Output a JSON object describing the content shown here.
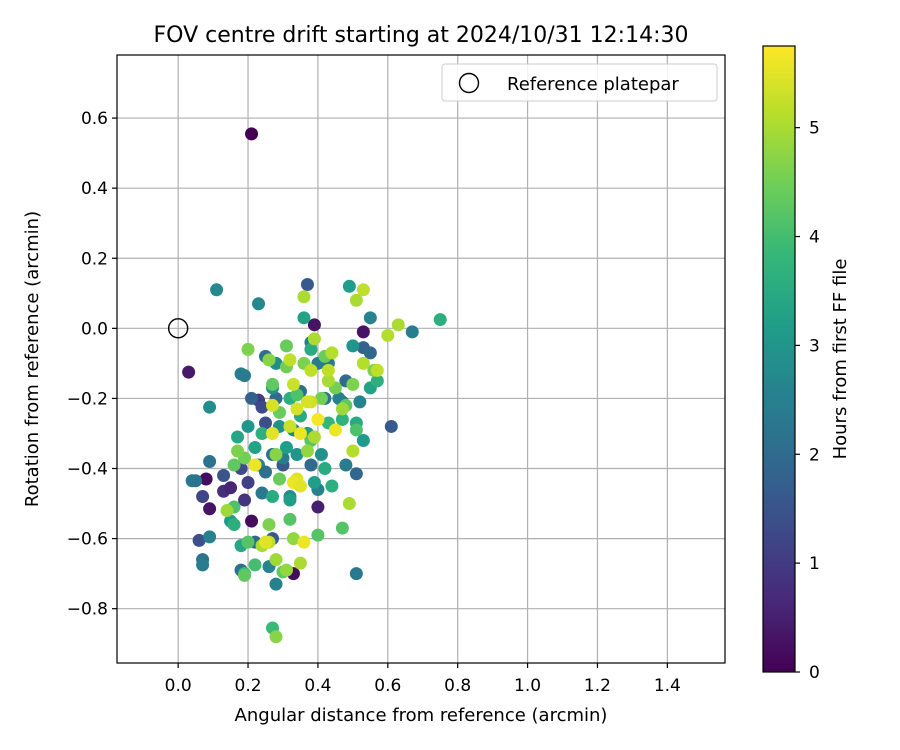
{
  "chart_data": {
    "type": "scatter",
    "title": "FOV centre drift starting at 2024/10/31 12:14:30",
    "xlabel": "Angular distance from reference (arcmin)",
    "ylabel": "Rotation from reference (arcmin)",
    "xlim": [
      -0.175,
      1.565
    ],
    "ylim": [
      -0.955,
      0.78
    ],
    "x_ticks": [
      0.0,
      0.2,
      0.4,
      0.6,
      0.8,
      1.0,
      1.2,
      1.4
    ],
    "x_tick_labels": [
      "0.0",
      "0.2",
      "0.4",
      "0.6",
      "0.8",
      "1.0",
      "1.2",
      "1.4"
    ],
    "y_ticks": [
      0.6,
      0.4,
      0.2,
      0.0,
      -0.2,
      -0.4,
      -0.6,
      -0.8
    ],
    "y_tick_labels": [
      "0.6",
      "0.4",
      "0.2",
      "0.0",
      "−0.2",
      "−0.4",
      "−0.6",
      "−0.8"
    ],
    "grid": true,
    "legend": {
      "position": "top-right",
      "entries": [
        {
          "label": "Reference platepar",
          "marker": "open-circle"
        }
      ]
    },
    "reference": {
      "x": 0.0,
      "y": 0.0
    },
    "colorbar": {
      "label": "Hours from first FF file",
      "range": [
        0,
        5.75
      ],
      "ticks": [
        0,
        1,
        2,
        3,
        4,
        5
      ],
      "tick_labels": [
        "0",
        "1",
        "2",
        "3",
        "4",
        "5"
      ],
      "colormap": [
        "#440154",
        "#482878",
        "#3e4989",
        "#31688e",
        "#26828e",
        "#1f9e89",
        "#35b779",
        "#6ece58",
        "#b5de2b",
        "#fde725"
      ]
    },
    "series": [
      {
        "points": [
          [
            0.21,
            0.555,
            0.0
          ],
          [
            0.03,
            -0.125,
            0.4
          ],
          [
            0.39,
            0.01,
            0.3
          ],
          [
            0.53,
            -0.01,
            0.3
          ],
          [
            0.08,
            -0.43,
            0.2
          ],
          [
            0.09,
            -0.515,
            0.3
          ],
          [
            0.21,
            -0.55,
            0.2
          ],
          [
            0.33,
            -0.7,
            0.2
          ],
          [
            0.4,
            -0.51,
            0.5
          ],
          [
            0.13,
            -0.465,
            0.8
          ],
          [
            0.07,
            -0.48,
            1.2
          ],
          [
            0.15,
            -0.455,
            0.6
          ],
          [
            0.19,
            -0.49,
            0.9
          ],
          [
            0.23,
            -0.205,
            1.0
          ],
          [
            0.06,
            -0.605,
            1.4
          ],
          [
            0.27,
            -0.6,
            1.6
          ],
          [
            0.37,
            0.125,
            1.6
          ],
          [
            0.53,
            -0.055,
            1.8
          ],
          [
            0.61,
            -0.28,
            1.6
          ],
          [
            0.51,
            -0.415,
            1.9
          ],
          [
            0.24,
            -0.225,
            1.3
          ],
          [
            0.2,
            -0.44,
            1.1
          ],
          [
            0.22,
            -0.61,
            1.9
          ],
          [
            0.13,
            -0.42,
            1.5
          ],
          [
            0.18,
            -0.4,
            1.3
          ],
          [
            0.3,
            -0.39,
            1.6
          ],
          [
            0.25,
            -0.27,
            1.4
          ],
          [
            0.55,
            -0.07,
            1.9
          ],
          [
            0.67,
            -0.01,
            2.4
          ],
          [
            0.25,
            -0.08,
            2.1
          ],
          [
            0.21,
            -0.2,
            1.8
          ],
          [
            0.28,
            -0.2,
            2.0
          ],
          [
            0.38,
            -0.04,
            2.4
          ],
          [
            0.4,
            -0.1,
            2.4
          ],
          [
            0.43,
            -0.1,
            2.3
          ],
          [
            0.48,
            -0.15,
            2.0
          ],
          [
            0.52,
            -0.21,
            2.6
          ],
          [
            0.42,
            -0.2,
            2.2
          ],
          [
            0.47,
            -0.21,
            2.3
          ],
          [
            0.35,
            -0.18,
            2.1
          ],
          [
            0.33,
            -0.29,
            2.5
          ],
          [
            0.27,
            -0.36,
            2.2
          ],
          [
            0.3,
            -0.37,
            2.4
          ],
          [
            0.38,
            -0.39,
            2.0
          ],
          [
            0.24,
            -0.47,
            2.3
          ],
          [
            0.23,
            -0.39,
            2.5
          ],
          [
            0.25,
            -0.41,
            2.1
          ],
          [
            0.4,
            -0.46,
            2.5
          ],
          [
            0.46,
            -0.2,
            2.5
          ],
          [
            0.55,
            0.03,
            2.6
          ],
          [
            0.48,
            -0.39,
            2.4
          ],
          [
            0.51,
            -0.7,
            2.3
          ],
          [
            0.28,
            -0.73,
            2.5
          ],
          [
            0.18,
            -0.69,
            2.1
          ],
          [
            0.26,
            -0.68,
            2.6
          ],
          [
            0.07,
            -0.66,
            2.2
          ],
          [
            0.07,
            -0.675,
            2.4
          ],
          [
            0.04,
            -0.435,
            2.3
          ],
          [
            0.05,
            -0.435,
            2.2
          ],
          [
            0.09,
            -0.38,
            2.2
          ],
          [
            0.09,
            -0.595,
            2.5
          ],
          [
            0.18,
            -0.13,
            2.5
          ],
          [
            0.19,
            -0.135,
            2.4
          ],
          [
            0.11,
            0.11,
            2.7
          ],
          [
            0.23,
            0.07,
            2.7
          ],
          [
            0.09,
            -0.225,
            2.8
          ],
          [
            0.29,
            -0.28,
            2.9
          ],
          [
            0.37,
            -0.3,
            2.7
          ],
          [
            0.41,
            -0.36,
            2.9
          ],
          [
            0.32,
            -0.48,
            2.8
          ],
          [
            0.2,
            -0.28,
            3.0
          ],
          [
            0.27,
            -0.17,
            2.9
          ],
          [
            0.28,
            -0.1,
            2.8
          ],
          [
            0.34,
            -0.36,
            3.0
          ],
          [
            0.36,
            0.03,
            3.3
          ],
          [
            0.37,
            -0.3,
            3.1
          ],
          [
            0.39,
            -0.44,
            3.2
          ],
          [
            0.5,
            -0.05,
            3.0
          ],
          [
            0.49,
            0.12,
            3.2
          ],
          [
            0.53,
            -0.32,
            3.1
          ],
          [
            0.55,
            -0.17,
            3.3
          ],
          [
            0.15,
            -0.55,
            3.1
          ],
          [
            0.16,
            -0.56,
            3.6
          ],
          [
            0.18,
            -0.62,
            3.4
          ],
          [
            0.22,
            -0.34,
            3.3
          ],
          [
            0.24,
            -0.3,
            3.6
          ],
          [
            0.27,
            -0.48,
            3.5
          ],
          [
            0.32,
            -0.49,
            3.2
          ],
          [
            0.31,
            -0.34,
            3.2
          ],
          [
            0.32,
            -0.2,
            3.6
          ],
          [
            0.35,
            -0.25,
            3.5
          ],
          [
            0.38,
            -0.06,
            3.5
          ],
          [
            0.42,
            -0.4,
            3.5
          ],
          [
            0.43,
            -0.27,
            3.8
          ],
          [
            0.44,
            -0.45,
            3.6
          ],
          [
            0.47,
            -0.26,
            3.7
          ],
          [
            0.51,
            -0.27,
            3.5
          ],
          [
            0.57,
            -0.15,
            3.6
          ],
          [
            0.75,
            0.025,
            3.6
          ],
          [
            0.17,
            -0.31,
            3.4
          ],
          [
            0.19,
            -0.7,
            3.9
          ],
          [
            0.16,
            -0.51,
            4.1
          ],
          [
            0.2,
            -0.61,
            4.2
          ],
          [
            0.22,
            -0.675,
            4.0
          ],
          [
            0.27,
            -0.855,
            3.9
          ],
          [
            0.3,
            -0.695,
            4.3
          ],
          [
            0.32,
            -0.545,
            4.2
          ],
          [
            0.4,
            -0.59,
            4.2
          ],
          [
            0.47,
            -0.57,
            4.2
          ],
          [
            0.51,
            -0.29,
            4.1
          ],
          [
            0.48,
            -0.22,
            4.3
          ],
          [
            0.45,
            -0.17,
            4.5
          ],
          [
            0.42,
            -0.08,
            4.4
          ],
          [
            0.36,
            -0.1,
            4.6
          ],
          [
            0.31,
            -0.05,
            4.4
          ],
          [
            0.27,
            -0.16,
            4.3
          ],
          [
            0.29,
            -0.24,
            4.4
          ],
          [
            0.34,
            -0.19,
            4.1
          ],
          [
            0.38,
            -0.32,
            4.2
          ],
          [
            0.41,
            -0.2,
            4.5
          ],
          [
            0.5,
            -0.16,
            4.6
          ],
          [
            0.56,
            -0.12,
            4.6
          ],
          [
            0.19,
            -0.705,
            4.3
          ],
          [
            0.2,
            -0.06,
            4.6
          ],
          [
            0.26,
            -0.09,
            4.7
          ],
          [
            0.31,
            -0.11,
            4.5
          ],
          [
            0.29,
            -0.43,
            4.4
          ],
          [
            0.19,
            -0.37,
            4.5
          ],
          [
            0.16,
            -0.39,
            4.3
          ],
          [
            0.17,
            -0.35,
            4.6
          ],
          [
            0.28,
            -0.36,
            4.7
          ],
          [
            0.14,
            -0.52,
            4.9
          ],
          [
            0.26,
            -0.56,
            4.6
          ],
          [
            0.24,
            -0.62,
            5.0
          ],
          [
            0.26,
            -0.61,
            5.2
          ],
          [
            0.28,
            -0.66,
            4.9
          ],
          [
            0.28,
            -0.88,
            4.7
          ],
          [
            0.31,
            -0.69,
            4.8
          ],
          [
            0.33,
            -0.6,
            4.8
          ],
          [
            0.35,
            -0.67,
            5.0
          ],
          [
            0.37,
            -0.35,
            4.8
          ],
          [
            0.39,
            -0.31,
            5.0
          ],
          [
            0.36,
            0.09,
            5.0
          ],
          [
            0.39,
            -0.03,
            5.0
          ],
          [
            0.43,
            -0.15,
            5.0
          ],
          [
            0.43,
            -0.12,
            5.2
          ],
          [
            0.44,
            -0.07,
            5.1
          ],
          [
            0.49,
            -0.5,
            5.0
          ],
          [
            0.5,
            -0.35,
            5.1
          ],
          [
            0.51,
            0.08,
            5.0
          ],
          [
            0.53,
            0.11,
            5.2
          ],
          [
            0.57,
            -0.12,
            5.2
          ],
          [
            0.6,
            -0.02,
            5.1
          ],
          [
            0.63,
            0.01,
            5.0
          ],
          [
            0.47,
            -0.23,
            4.9
          ],
          [
            0.53,
            -0.1,
            5.1
          ],
          [
            0.38,
            -0.12,
            5.2
          ],
          [
            0.38,
            -0.21,
            5.3
          ],
          [
            0.37,
            -0.21,
            5.4
          ],
          [
            0.34,
            -0.23,
            5.4
          ],
          [
            0.35,
            -0.3,
            5.6
          ],
          [
            0.32,
            -0.28,
            5.3
          ],
          [
            0.32,
            -0.09,
            5.2
          ],
          [
            0.33,
            -0.16,
            5.3
          ],
          [
            0.34,
            -0.43,
            5.5
          ],
          [
            0.33,
            -0.44,
            5.6
          ],
          [
            0.35,
            -0.45,
            5.5
          ],
          [
            0.36,
            -0.61,
            5.6
          ],
          [
            0.4,
            -0.26,
            5.7
          ],
          [
            0.45,
            -0.29,
            5.6
          ],
          [
            0.27,
            -0.3,
            5.5
          ],
          [
            0.22,
            -0.39,
            5.6
          ],
          [
            0.25,
            -0.61,
            5.5
          ],
          [
            0.27,
            -0.22,
            5.4
          ]
        ]
      }
    ]
  }
}
